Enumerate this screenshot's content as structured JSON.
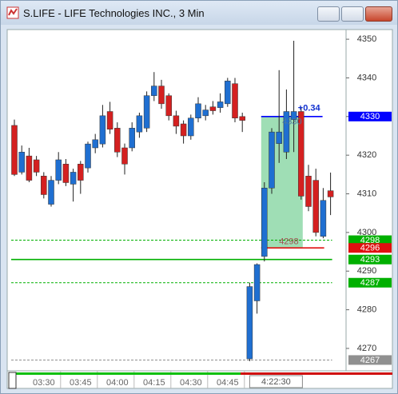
{
  "chart_data": {
    "type": "candlestick",
    "title": "S.LIFE - LIFE Technologies INC., 3 Min",
    "up_color": "#1f6fd1",
    "down_color": "#d42020",
    "open": [
      4327.7,
      4315.6,
      4319.8,
      4318.8,
      4314.6,
      4307.3,
      4313.5,
      4317.7,
      4312.5,
      4317.7,
      4316.7,
      4321.9,
      4322.9,
      4331.3,
      4327,
      4321.9,
      4321.9,
      4326,
      4327,
      4335.4,
      4337.9,
      4335.4,
      4330.2,
      4328.1,
      4325,
      4329.6,
      4330.2,
      4332.5,
      4332.3,
      4333.3,
      4338.5,
      4330,
      4267.3,
      4282.3,
      4293.8,
      4311.5,
      4323,
      4320.8,
      4329.2,
      4331.3,
      4314.6,
      4313.5,
      4299,
      4310.8
    ],
    "high": [
      4329.2,
      4322.5,
      4321.9,
      4319.8,
      4315.6,
      4314.6,
      4320.8,
      4319,
      4316.5,
      4318.5,
      4323.5,
      4325.5,
      4333,
      4333.8,
      4328.5,
      4323,
      4328.5,
      4331,
      4336.5,
      4341.5,
      4339.5,
      4336,
      4331.5,
      4329,
      4330.5,
      4335,
      4333,
      4334,
      4336,
      4340,
      4340,
      4331,
      4287,
      4292,
      4313,
      4327,
      4342,
      4337,
      4349.6,
      4332.5,
      4317.5,
      4316.5,
      4311.5,
      4315.5
    ],
    "low": [
      4314.6,
      4315,
      4313,
      4314.6,
      4308.8,
      4306.7,
      4312.5,
      4312,
      4308,
      4310,
      4315.5,
      4320.5,
      4322,
      4325.5,
      4319.5,
      4315,
      4321,
      4324.5,
      4326,
      4334,
      4332,
      4329,
      4325.5,
      4323,
      4324,
      4328.5,
      4329,
      4330.5,
      4331,
      4332.5,
      4328.5,
      4326,
      4266.7,
      4279,
      4292.5,
      4310,
      4318,
      4319,
      4320.8,
      4308.5,
      4305.5,
      4299,
      4298.5,
      4304.5
    ],
    "close": [
      4315,
      4320.8,
      4313.5,
      4315.6,
      4309.8,
      4313.5,
      4318.8,
      4312.9,
      4315.6,
      4313.5,
      4322.9,
      4324,
      4330.2,
      4326.7,
      4320.8,
      4317.7,
      4327,
      4330.2,
      4335.4,
      4337.9,
      4333.3,
      4330.2,
      4327.5,
      4325,
      4329.6,
      4333.3,
      4331.7,
      4331.5,
      4333.8,
      4339.2,
      4329.6,
      4329,
      4286,
      4291.7,
      4311.5,
      4326,
      4326,
      4331.3,
      4331.3,
      4309.4,
      4306.7,
      4300,
      4308.3,
      4309.2
    ],
    "ylim": [
      4264.2,
      4352.5
    ],
    "yticks": [
      4270,
      4280,
      4290,
      4300,
      4310,
      4320,
      4330,
      4340,
      4350
    ],
    "xticks": [
      {
        "value": 4,
        "label": "03:30"
      },
      {
        "value": 9,
        "label": "03:45"
      },
      {
        "value": 14,
        "label": "04:00"
      },
      {
        "value": 19,
        "label": "04:15"
      },
      {
        "value": 24,
        "label": "04:30"
      },
      {
        "value": 29,
        "label": "04:45"
      }
    ],
    "cursor_label": "4:22:30",
    "price_tags": [
      {
        "value": 4330,
        "label": "4330",
        "color": "#0000ff",
        "style": "solid"
      },
      {
        "value": 4298,
        "label": "4298",
        "color": "#00b000",
        "style": "dashed"
      },
      {
        "value": 4296,
        "label": "4296",
        "color": "#e01010",
        "style": "solid"
      },
      {
        "value": 4293,
        "label": "4293",
        "color": "#00b000",
        "style": "solid"
      },
      {
        "value": 4287,
        "label": "4287",
        "color": "#00b000",
        "style": "dashed"
      },
      {
        "value": 4267,
        "label": "4267",
        "color": "#909090",
        "style": "dashed"
      }
    ],
    "annotations": [
      "+0.34",
      "4330",
      "4298"
    ]
  }
}
